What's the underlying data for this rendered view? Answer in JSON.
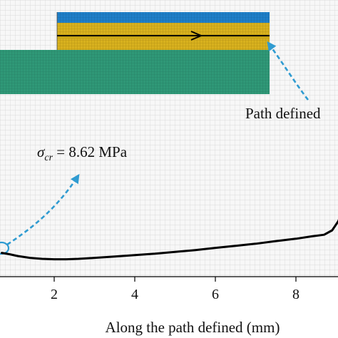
{
  "chart_data": {
    "type": "line",
    "xlabel": "Along the path defined (mm)",
    "ylabel": "",
    "xlim": [
      0.7,
      9.35
    ],
    "ylim": [
      0,
      10
    ],
    "x_ticks": [
      "2",
      "4",
      "6",
      "8"
    ],
    "x_tick_values": [
      2,
      4,
      6,
      8
    ],
    "series": [
      {
        "color": "#000000",
        "x": [
          0.7,
          0.9,
          1.1,
          1.4,
          1.7,
          2.0,
          2.3,
          2.6,
          3.0,
          3.5,
          4.0,
          4.5,
          5.0,
          5.5,
          6.0,
          6.5,
          7.0,
          7.5,
          8.0,
          8.4,
          8.7,
          8.9,
          9.05,
          9.2,
          9.35
        ],
        "y": [
          0.37,
          0.3,
          0.21,
          0.12,
          0.07,
          0.05,
          0.05,
          0.07,
          0.12,
          0.19,
          0.26,
          0.33,
          0.42,
          0.51,
          0.62,
          0.72,
          0.83,
          0.96,
          1.08,
          1.2,
          1.28,
          1.5,
          1.95,
          2.7,
          3.3
        ]
      }
    ],
    "annotations": {
      "critical_stress": {
        "symbol": "σ",
        "subscript": "cr",
        "value_text": " = 8.62 MPa"
      },
      "path_label": "Path defined"
    },
    "grid": false,
    "background": "mesh"
  },
  "colors": {
    "mesh_background": "#f7f7f7",
    "mesh_lines": "#d2d2d2",
    "laminate_green": "#2f9877",
    "laminate_yellow": "#d8b11e",
    "laminate_blue": "#1f7fc8",
    "arrow_blue": "#2f9bd1",
    "curve": "#000000"
  }
}
